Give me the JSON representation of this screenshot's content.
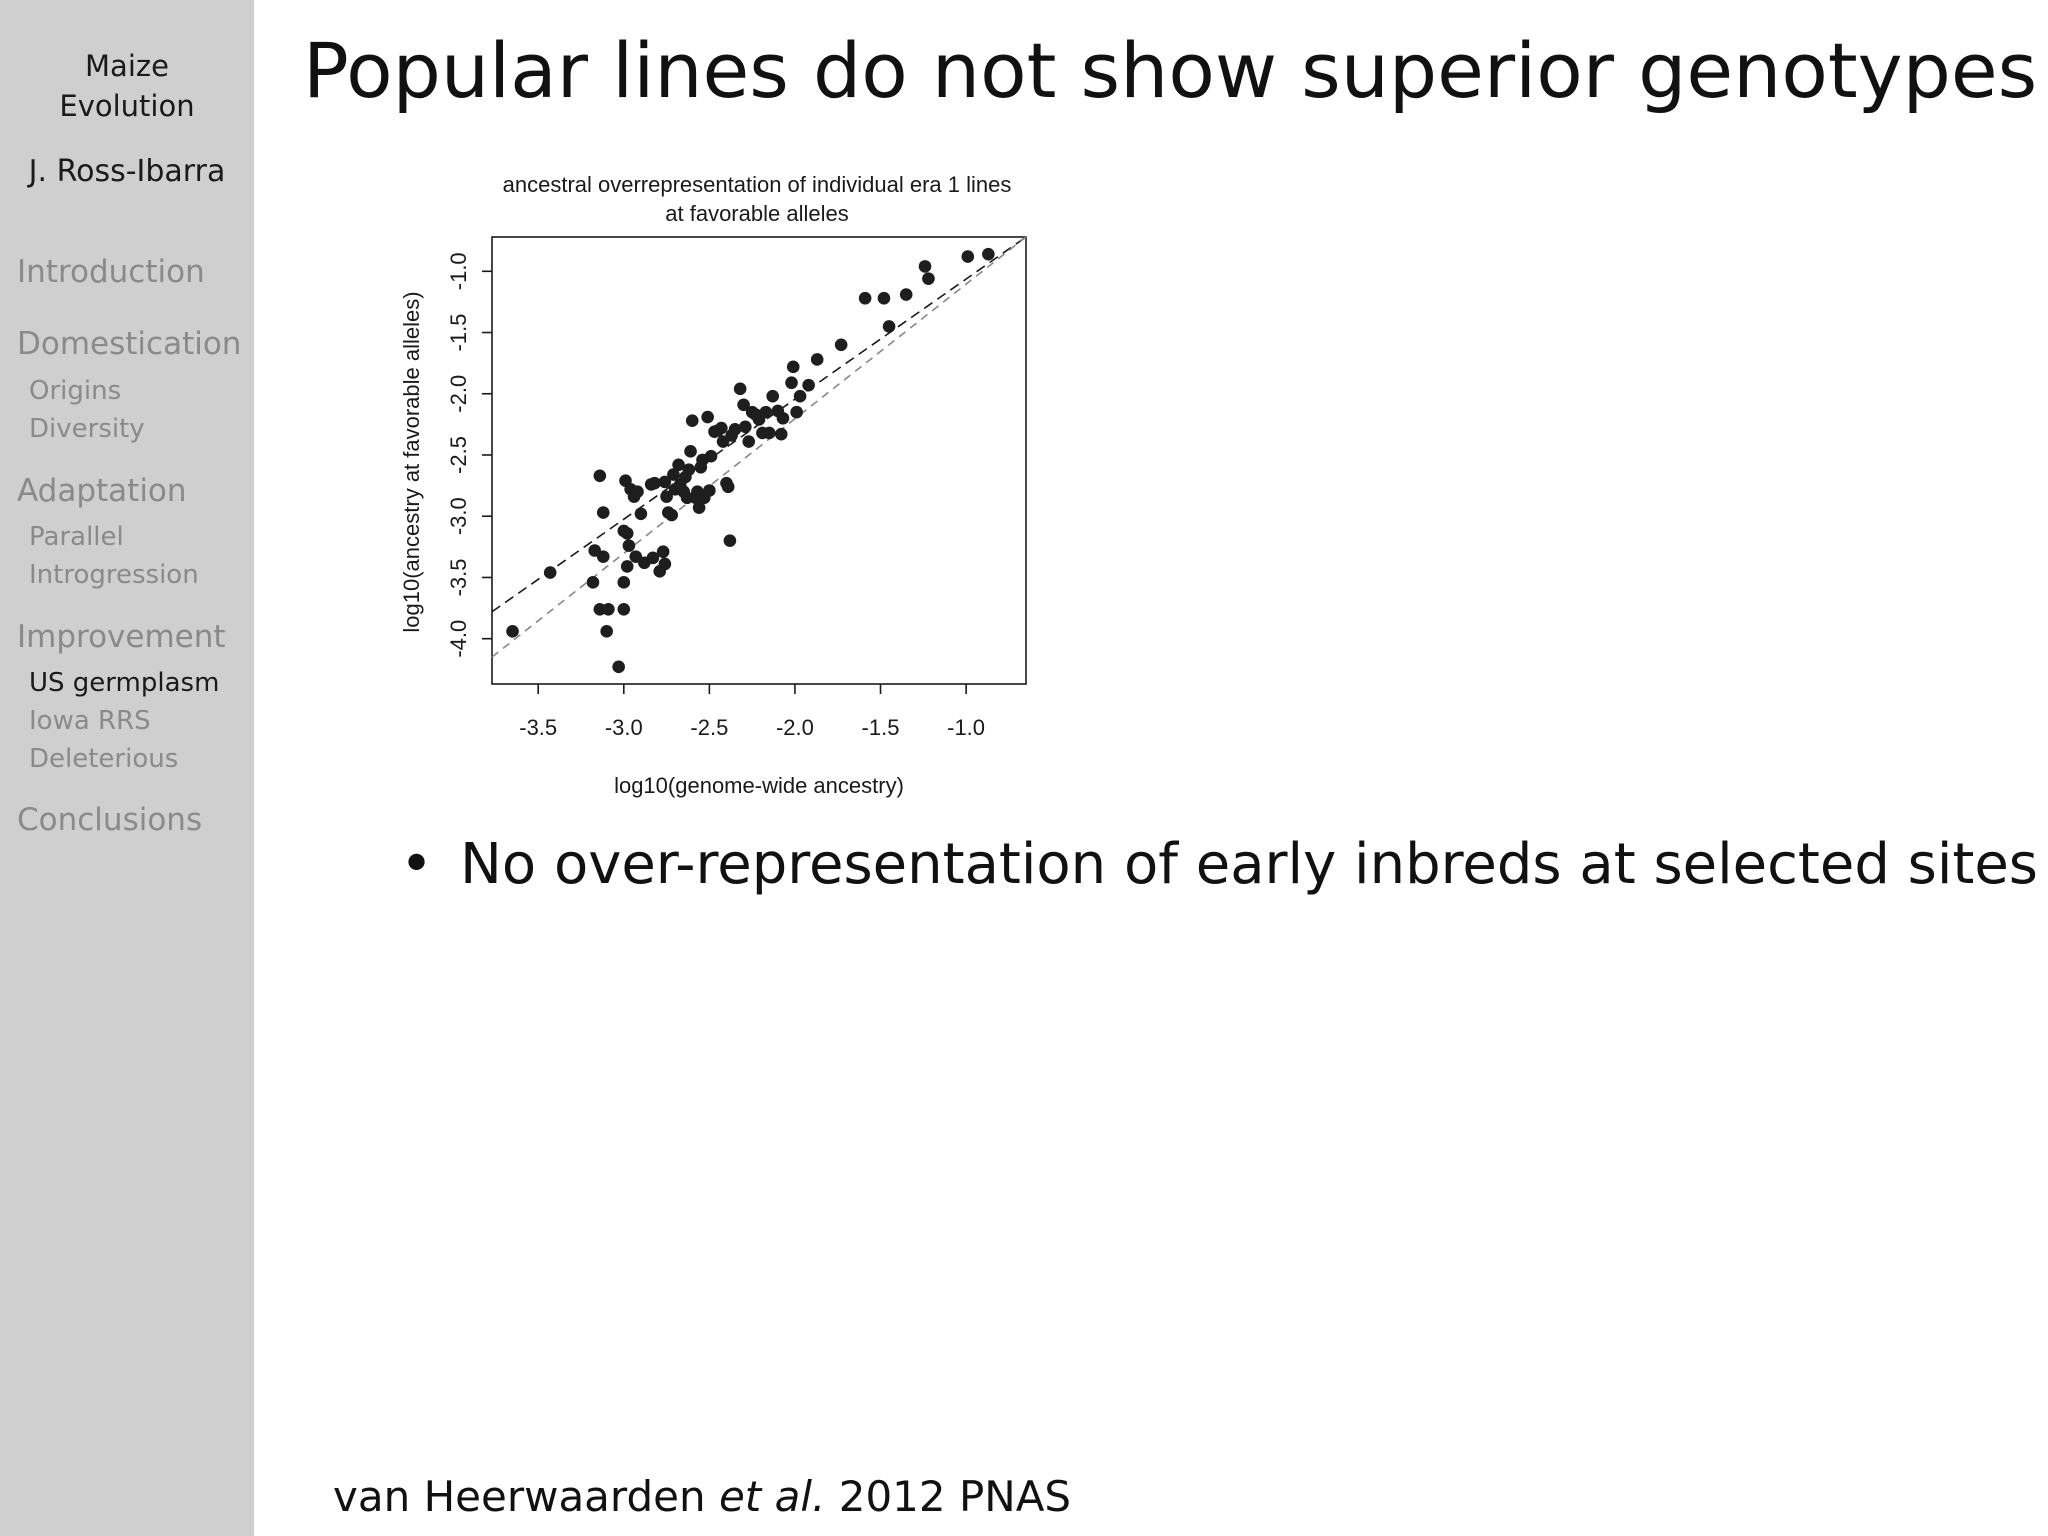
{
  "sidebar": {
    "title_line1": "Maize",
    "title_line2": "Evolution",
    "author": "J. Ross-Ibarra",
    "sections": [
      {
        "label": "Introduction",
        "subs": []
      },
      {
        "label": "Domestication",
        "subs": [
          "Origins",
          "Diversity"
        ]
      },
      {
        "label": "Adaptation",
        "subs": [
          "Parallel",
          "Introgression"
        ]
      },
      {
        "label": "Improvement",
        "subs": [
          "US germplasm",
          "Iowa RRS",
          "Deleterious"
        ]
      },
      {
        "label": "Conclusions",
        "subs": []
      }
    ],
    "active_sub": "US germplasm"
  },
  "slide": {
    "title": "Popular lines do not show superior genotypes",
    "bullet_mark": "•",
    "bullet": "No over-representation of early inbreds at selected sites",
    "citation_author": "van Heerwaarden",
    "citation_etal": "et al.",
    "citation_rest": "2012 PNAS"
  },
  "colors": {
    "sidebar_bg": "#cfcfcf",
    "sidebar_inactive": "#8a8a8a",
    "text": "#111111"
  },
  "chart_data": {
    "type": "scatter",
    "title": "ancestral overrepresentation of individual era 1 lines",
    "subtitle": "at favorable alleles",
    "xlabel": "log10(genome-wide ancestry)",
    "ylabel": "log10(ancestry at favorable alleles)",
    "xlim": [
      -3.77,
      -0.65
    ],
    "ylim": [
      -4.37,
      -0.72
    ],
    "xticks": [
      -3.5,
      -3.0,
      -2.5,
      -2.0,
      -1.5,
      -1.0
    ],
    "xtick_labels": [
      "-3.5",
      "-3.0",
      "-2.5",
      "-2.0",
      "-1.5",
      "-1.0"
    ],
    "yticks": [
      -4.0,
      -3.5,
      -3.0,
      -2.5,
      -2.0,
      -1.5,
      -1.0
    ],
    "ytick_labels": [
      "-4.0",
      "-3.5",
      "-3.0",
      "-2.5",
      "-2.0",
      "-1.5",
      "-1.0"
    ],
    "grid": false,
    "reference_lines": [
      {
        "style": "dashed-black",
        "x": [
          -3.77,
          -0.65
        ],
        "y": [
          -3.78,
          -0.72
        ]
      },
      {
        "style": "dashed-gray",
        "x": [
          -3.77,
          -0.65
        ],
        "y": [
          -4.15,
          -0.72
        ]
      }
    ],
    "points": [
      [
        -3.65,
        -3.94
      ],
      [
        -3.43,
        -3.46
      ],
      [
        -3.17,
        -3.28
      ],
      [
        -3.18,
        -3.54
      ],
      [
        -3.14,
        -2.67
      ],
      [
        -3.14,
        -3.76
      ],
      [
        -3.12,
        -3.33
      ],
      [
        -3.12,
        -2.97
      ],
      [
        -3.1,
        -3.94
      ],
      [
        -3.09,
        -3.76
      ],
      [
        -3.03,
        -4.23
      ],
      [
        -3.0,
        -3.12
      ],
      [
        -3.0,
        -3.54
      ],
      [
        -3.0,
        -3.76
      ],
      [
        -2.99,
        -2.71
      ],
      [
        -2.98,
        -3.14
      ],
      [
        -2.98,
        -3.41
      ],
      [
        -2.97,
        -3.24
      ],
      [
        -2.96,
        -2.78
      ],
      [
        -2.94,
        -2.84
      ],
      [
        -2.93,
        -3.33
      ],
      [
        -2.92,
        -2.8
      ],
      [
        -2.9,
        -2.98
      ],
      [
        -2.88,
        -3.38
      ],
      [
        -2.84,
        -2.74
      ],
      [
        -2.83,
        -3.34
      ],
      [
        -2.82,
        -2.73
      ],
      [
        -2.79,
        -3.45
      ],
      [
        -2.77,
        -3.29
      ],
      [
        -2.76,
        -3.39
      ],
      [
        -2.76,
        -2.72
      ],
      [
        -2.75,
        -2.84
      ],
      [
        -2.74,
        -2.97
      ],
      [
        -2.72,
        -2.99
      ],
      [
        -2.71,
        -2.66
      ],
      [
        -2.7,
        -2.78
      ],
      [
        -2.68,
        -2.58
      ],
      [
        -2.67,
        -2.74
      ],
      [
        -2.65,
        -2.8
      ],
      [
        -2.64,
        -2.68
      ],
      [
        -2.63,
        -2.85
      ],
      [
        -2.62,
        -2.62
      ],
      [
        -2.61,
        -2.47
      ],
      [
        -2.6,
        -2.22
      ],
      [
        -2.58,
        -2.85
      ],
      [
        -2.57,
        -2.8
      ],
      [
        -2.56,
        -2.93
      ],
      [
        -2.55,
        -2.6
      ],
      [
        -2.54,
        -2.54
      ],
      [
        -2.53,
        -2.85
      ],
      [
        -2.51,
        -2.19
      ],
      [
        -2.5,
        -2.79
      ],
      [
        -2.49,
        -2.51
      ],
      [
        -2.47,
        -2.31
      ],
      [
        -2.45,
        -2.3
      ],
      [
        -2.43,
        -2.28
      ],
      [
        -2.42,
        -2.39
      ],
      [
        -2.4,
        -2.73
      ],
      [
        -2.39,
        -2.76
      ],
      [
        -2.38,
        -3.2
      ],
      [
        -2.37,
        -2.34
      ],
      [
        -2.35,
        -2.29
      ],
      [
        -2.32,
        -1.96
      ],
      [
        -2.3,
        -2.09
      ],
      [
        -2.29,
        -2.27
      ],
      [
        -2.27,
        -2.39
      ],
      [
        -2.25,
        -2.15
      ],
      [
        -2.23,
        -2.17
      ],
      [
        -2.21,
        -2.21
      ],
      [
        -2.19,
        -2.32
      ],
      [
        -2.17,
        -2.15
      ],
      [
        -2.15,
        -2.32
      ],
      [
        -2.13,
        -2.02
      ],
      [
        -2.1,
        -2.14
      ],
      [
        -2.08,
        -2.33
      ],
      [
        -2.07,
        -2.2
      ],
      [
        -2.02,
        -1.91
      ],
      [
        -2.01,
        -1.78
      ],
      [
        -1.99,
        -2.15
      ],
      [
        -1.97,
        -2.02
      ],
      [
        -1.92,
        -1.93
      ],
      [
        -1.87,
        -1.72
      ],
      [
        -1.73,
        -1.6
      ],
      [
        -1.59,
        -1.22
      ],
      [
        -1.48,
        -1.22
      ],
      [
        -1.45,
        -1.45
      ],
      [
        -1.35,
        -1.19
      ],
      [
        -1.24,
        -0.96
      ],
      [
        -1.22,
        -1.06
      ],
      [
        -0.99,
        -0.88
      ],
      [
        -0.87,
        -0.86
      ]
    ]
  }
}
